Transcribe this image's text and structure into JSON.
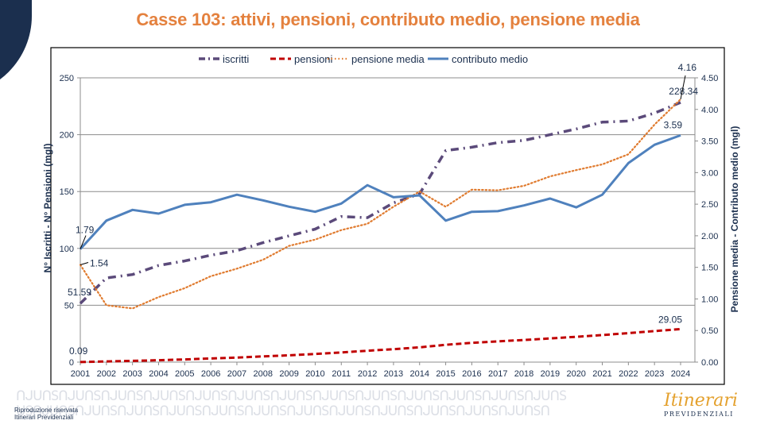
{
  "slide": {
    "title": "Casse 103: attivi, pensioni, contributo medio, pensione media",
    "footer": [
      "Riproduzione riservata",
      "Itinerari Previdenziali"
    ],
    "logo_script": "Itinerari",
    "logo_sub": "PREVIDENZIALI",
    "colors": {
      "title": "#e4813e",
      "navy": "#1b2f4e"
    }
  },
  "chart_data": {
    "type": "line",
    "title": "Casse 103: attivi, pensioni, contributo medio, pensione media",
    "x": [
      "2001",
      "2002",
      "2003",
      "2004",
      "2005",
      "2006",
      "2007",
      "2008",
      "2009",
      "2010",
      "2011",
      "2012",
      "2013",
      "2014",
      "2015",
      "2016",
      "2017",
      "2018",
      "2019",
      "2020",
      "2021",
      "2022",
      "2023",
      "2024"
    ],
    "ylabel": "N° Iscritti - N° Pensioni (mgl)",
    "y2label": "Pensione media - Contributo medio (mgl)",
    "ylim": [
      0,
      250
    ],
    "y2lim": [
      0,
      4.5
    ],
    "yticks": [
      "0",
      "50",
      "100",
      "150",
      "200",
      "250"
    ],
    "y2ticks": [
      "0.00",
      "0.50",
      "1.00",
      "1.50",
      "2.00",
      "2.50",
      "3.00",
      "3.50",
      "4.00",
      "4.50"
    ],
    "grid": true,
    "legend_position": "top",
    "series": [
      {
        "name": "iscritti",
        "axis": "left",
        "style": "dashdot",
        "color": "#5b4a7a",
        "values": [
          51.59,
          74,
          77,
          85,
          89,
          94,
          98,
          105,
          111,
          117,
          128,
          127,
          140,
          148,
          186,
          189,
          193,
          195,
          200,
          205,
          211,
          212,
          219,
          228.34
        ],
        "labels": {
          "0": "51.59",
          "23": "228.34"
        }
      },
      {
        "name": "pensioni",
        "axis": "left",
        "style": "dashed",
        "color": "#c00000",
        "values": [
          0.09,
          0.6,
          1.1,
          1.7,
          2.4,
          3.2,
          4.0,
          5.0,
          6.0,
          7.2,
          8.5,
          10.0,
          11.4,
          13.0,
          15.2,
          17.0,
          18.2,
          19.5,
          20.8,
          22.3,
          23.8,
          25.5,
          27.3,
          29.05
        ],
        "labels": {
          "0": "0.09",
          "23": "29.05"
        }
      },
      {
        "name": "pensione media",
        "axis": "right",
        "style": "dotted",
        "color": "#e07b2f",
        "values": [
          1.54,
          0.9,
          0.85,
          1.03,
          1.17,
          1.36,
          1.48,
          1.62,
          1.84,
          1.94,
          2.09,
          2.19,
          2.46,
          2.7,
          2.46,
          2.73,
          2.72,
          2.79,
          2.94,
          3.04,
          3.13,
          3.29,
          3.76,
          4.16
        ],
        "labels": {
          "0": "1.54",
          "23": "4.16"
        }
      },
      {
        "name": "contributo medio",
        "axis": "right",
        "style": "solid",
        "color": "#4f81bd",
        "values": [
          1.79,
          2.24,
          2.41,
          2.35,
          2.49,
          2.53,
          2.65,
          2.56,
          2.46,
          2.38,
          2.51,
          2.8,
          2.61,
          2.64,
          2.24,
          2.38,
          2.39,
          2.48,
          2.59,
          2.45,
          2.65,
          3.15,
          3.44,
          3.59
        ],
        "labels": {
          "0": "1.79",
          "23": "3.59"
        }
      }
    ]
  }
}
